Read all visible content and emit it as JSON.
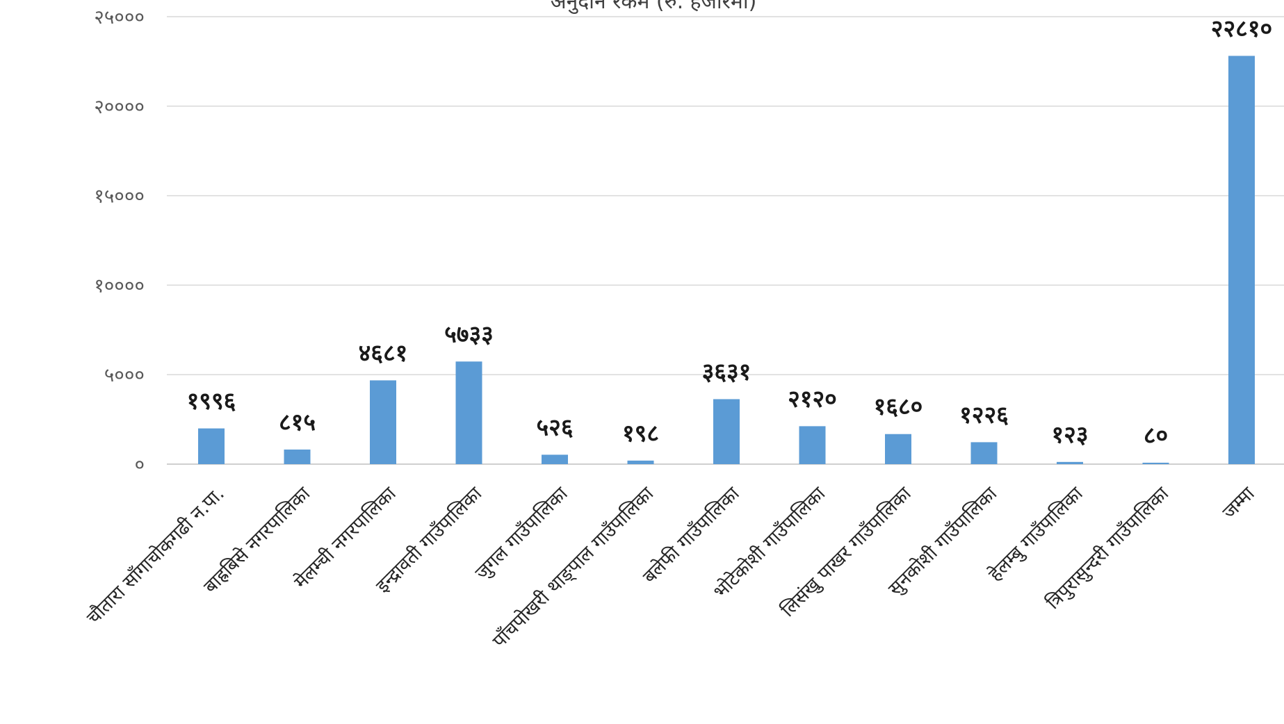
{
  "chart_data": {
    "type": "bar",
    "title": "अनुदान रकम (रु. हजारमा)",
    "xlabel": "",
    "ylabel": "",
    "ylim": [
      0,
      25000
    ],
    "yticks": [
      0,
      5000,
      10000,
      15000,
      20000,
      25000
    ],
    "ytick_labels": [
      "०",
      "५०००",
      "१००००",
      "१५०००",
      "२००००",
      "२५०००"
    ],
    "grid": true,
    "legend": "none",
    "bar_color": "#5b9bd5",
    "categories": [
      "चौतारा साँगाचोकगढी न.पा.",
      "बाह्रबिसे नगरपालिका",
      "मेलम्ची नगरपालिका",
      "इन्द्रावती गाउँपालिका",
      "जुगल गाउँपालिका",
      "पाँचपोखरी थाङ्पाल गाउँपालिका",
      "बलेफी गाउँपालिका",
      "भोटेकोशी गाउँपालिका",
      "लिसंखु पाखर गाउँपालिका",
      "सुनकोशी गाउँपालिका",
      "हेलम्बु गाउँपालिका",
      "त्रिपुरासुन्दरी गाउँपालिका",
      "जम्मा"
    ],
    "values": [
      1996,
      815,
      4681,
      5733,
      526,
      198,
      3631,
      2120,
      1680,
      1226,
      123,
      80,
      22810
    ],
    "data_labels": [
      "१९९६",
      "८१५",
      "४६८१",
      "५७३३",
      "५२६",
      "१९८",
      "३६३१",
      "२१२०",
      "१६८०",
      "१२२६",
      "१२३",
      "८०",
      "२२८१०"
    ]
  }
}
